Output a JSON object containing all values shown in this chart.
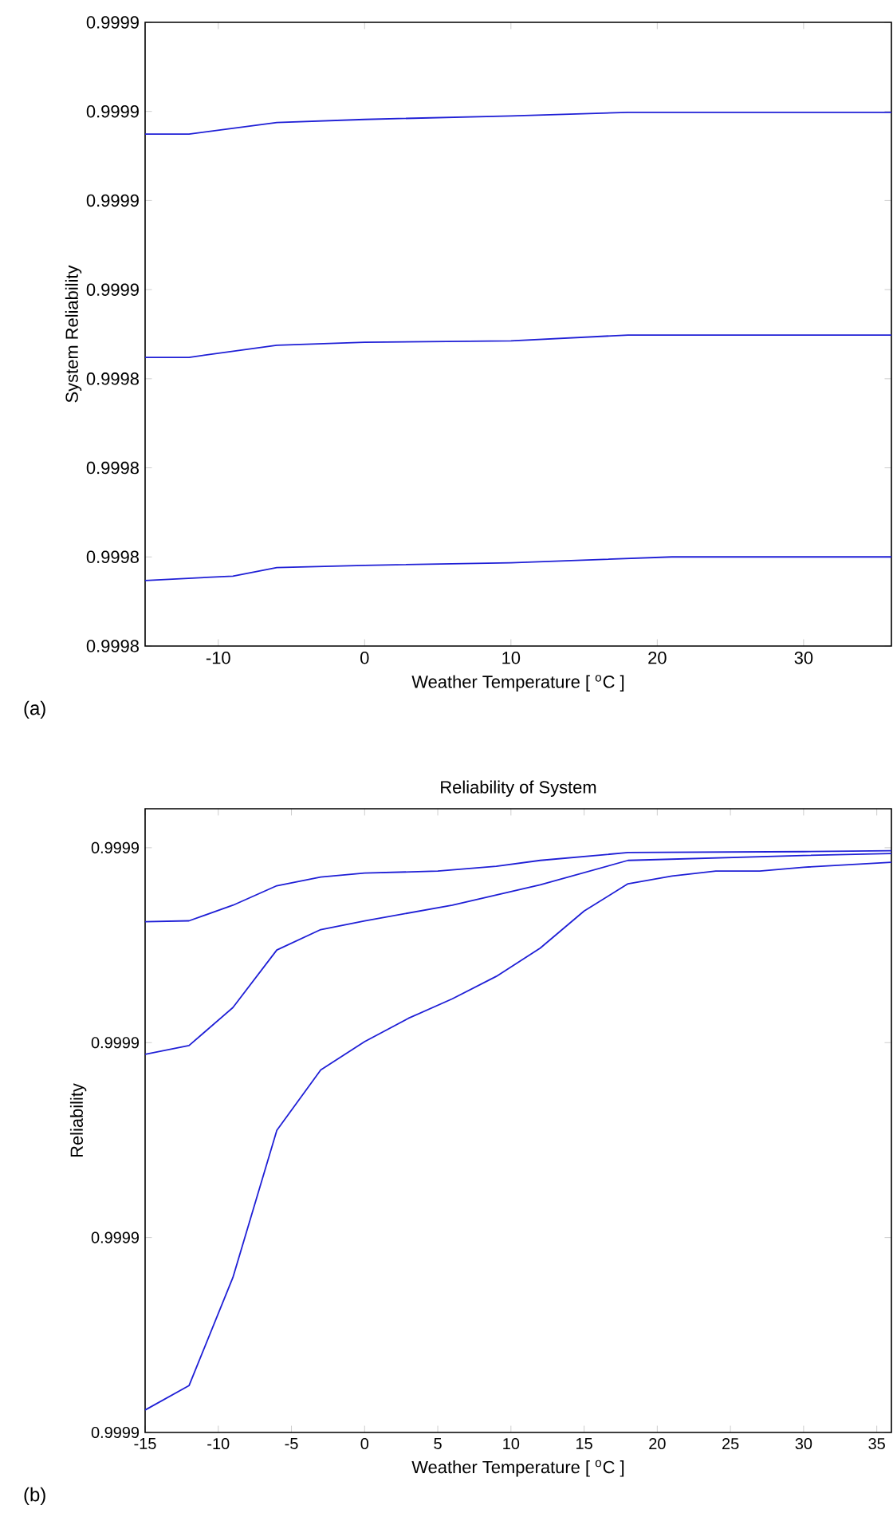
{
  "chart_data": [
    {
      "type": "line",
      "xlabel": "Weather Temperature [ $^{o}$C ]",
      "ylabel": "System Reliability",
      "annotations": [
        "(a)"
      ],
      "xlim": [
        -15,
        36
      ],
      "ylim": [
        0.99978,
        0.99992
      ],
      "xticks": [
        -10,
        0,
        10,
        20,
        30
      ],
      "yticks": [
        {
          "value": 0.99978,
          "label": "0.9998"
        },
        {
          "value": 0.9998,
          "label": "0.9998"
        },
        {
          "value": 0.99982,
          "label": "0.9998"
        },
        {
          "value": 0.99984,
          "label": "0.9998"
        },
        {
          "value": 0.99986,
          "label": "0.9999"
        },
        {
          "value": 0.99988,
          "label": "0.9999"
        },
        {
          "value": 0.9999,
          "label": "0.9999"
        },
        {
          "value": 0.99992,
          "label": "0.9999"
        }
      ],
      "series": [
        {
          "color": "#1f1fd6",
          "x": [
            -15,
            -12,
            -6,
            0,
            10,
            18,
            36
          ],
          "values": [
            0.9998949,
            0.9998949,
            0.9998975,
            0.9998982,
            0.999899,
            0.9998998,
            0.9998998
          ]
        },
        {
          "color": "#1f1fd6",
          "x": [
            -15,
            -12,
            -6,
            0,
            10,
            18,
            36
          ],
          "values": [
            0.9998448,
            0.9998448,
            0.9998475,
            0.9998482,
            0.9998485,
            0.9998498,
            0.9998498
          ]
        },
        {
          "color": "#1f1fd6",
          "x": [
            -15,
            -9,
            -6,
            0,
            10,
            21,
            36
          ],
          "values": [
            0.9997947,
            0.9997957,
            0.9997976,
            0.9997981,
            0.9997987,
            0.9998,
            0.9998
          ]
        }
      ]
    },
    {
      "type": "line",
      "title": "Reliability of System",
      "xlabel": "Weather Temperature [ $^{o}$C ]",
      "ylabel": "Reliability",
      "annotations": [
        "(b)"
      ],
      "xlim": [
        -15,
        36
      ],
      "ylim": [
        0.99988,
        0.999944
      ],
      "xticks": [
        -15,
        -10,
        -5,
        0,
        5,
        10,
        15,
        20,
        25,
        30,
        35
      ],
      "yticks": [
        {
          "value": 0.99988,
          "label": "0.9999"
        },
        {
          "value": 0.9999,
          "label": "0.9999"
        },
        {
          "value": 0.99992,
          "label": "0.9999"
        },
        {
          "value": 0.99994,
          "label": "0.9999"
        }
      ],
      "series": [
        {
          "color": "#1f1fd6",
          "x": [
            -15,
            -12,
            -9,
            -6,
            -3,
            0,
            5,
            9,
            12,
            18,
            30,
            36
          ],
          "values": [
            0.9999324,
            0.9999325,
            0.9999341,
            0.9999361,
            0.999937,
            0.9999374,
            0.9999376,
            0.9999381,
            0.9999387,
            0.9999395,
            0.9999396,
            0.9999397
          ]
        },
        {
          "color": "#1f1fd6",
          "x": [
            -15,
            -12,
            -9,
            -6,
            -3,
            0,
            6,
            12,
            18,
            30,
            36
          ],
          "values": [
            0.9999188,
            0.9999197,
            0.9999236,
            0.9999295,
            0.9999316,
            0.9999325,
            0.9999341,
            0.9999362,
            0.9999387,
            0.9999392,
            0.9999394
          ]
        },
        {
          "color": "#1f1fd6",
          "x": [
            -15,
            -12,
            -9,
            -6,
            -3,
            0,
            3,
            6,
            9,
            12,
            15,
            18,
            21,
            24,
            27,
            30,
            36
          ],
          "values": [
            0.9998823,
            0.9998848,
            0.9998959,
            0.999911,
            0.9999172,
            0.9999201,
            0.9999225,
            0.9999245,
            0.9999268,
            0.9999297,
            0.9999335,
            0.9999363,
            0.9999371,
            0.9999376,
            0.9999376,
            0.999938,
            0.9999385
          ]
        }
      ]
    }
  ]
}
